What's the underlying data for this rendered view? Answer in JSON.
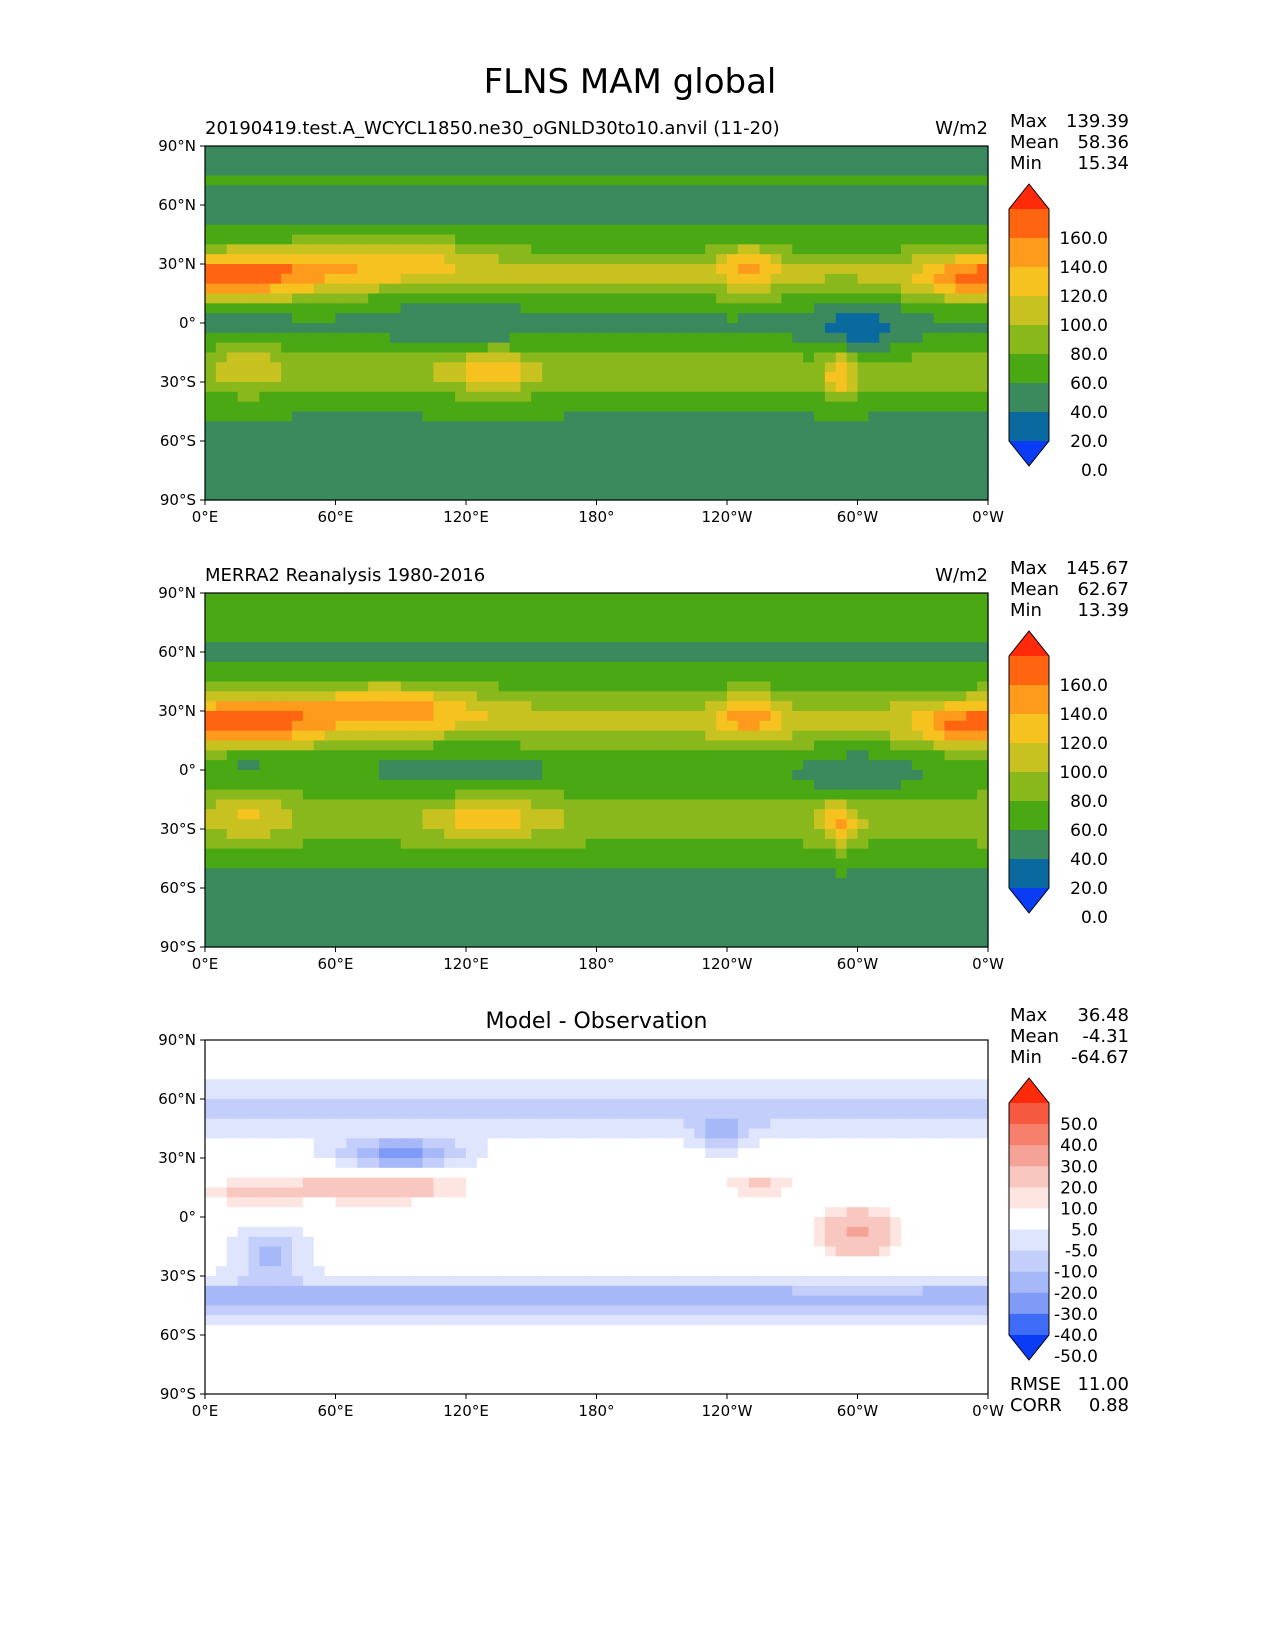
{
  "figure": {
    "title": "FLNS MAM global"
  },
  "chart_data": [
    {
      "type": "heatmap",
      "name": "model",
      "title_left": "20190419.test.A_WCYCL1850.ne30_oGNLD30to10.anvil (11-20)",
      "title_center": "",
      "units": "W/m2",
      "stats": [
        {
          "label": "Max",
          "value": "139.39"
        },
        {
          "label": "Mean",
          "value": "58.36"
        },
        {
          "label": "Min",
          "value": "15.34"
        }
      ],
      "footer_stats": [],
      "x_ticks": [
        "0°E",
        "60°E",
        "120°E",
        "180°",
        "120°W",
        "60°W",
        "0°W"
      ],
      "y_ticks": [
        "90°N",
        "60°N",
        "30°N",
        "0°",
        "30°S",
        "60°S",
        "90°S"
      ],
      "xlim": [
        0,
        360
      ],
      "ylim": [
        -90,
        90
      ],
      "colorbar": {
        "labels": [
          "160.0",
          "140.0",
          "120.0",
          "100.0",
          "80.0",
          "60.0",
          "40.0",
          "20.0",
          "0.0"
        ],
        "colors": [
          "#ff2a0a",
          "#ff6410",
          "#ff9b1c",
          "#f6c220",
          "#c8c220",
          "#89b81d",
          "#4aa814",
          "#3a8a5e",
          "#0a6aa0",
          "#0a3cf5"
        ]
      },
      "field": "model"
    },
    {
      "type": "heatmap",
      "name": "obs",
      "title_left": "MERRA2 Reanalysis 1980-2016",
      "title_center": "",
      "units": "W/m2",
      "stats": [
        {
          "label": "Max",
          "value": "145.67"
        },
        {
          "label": "Mean",
          "value": "62.67"
        },
        {
          "label": "Min",
          "value": "13.39"
        }
      ],
      "footer_stats": [],
      "x_ticks": [
        "0°E",
        "60°E",
        "120°E",
        "180°",
        "120°W",
        "60°W",
        "0°W"
      ],
      "y_ticks": [
        "90°N",
        "60°N",
        "30°N",
        "0°",
        "30°S",
        "60°S",
        "90°S"
      ],
      "xlim": [
        0,
        360
      ],
      "ylim": [
        -90,
        90
      ],
      "colorbar": {
        "labels": [
          "160.0",
          "140.0",
          "120.0",
          "100.0",
          "80.0",
          "60.0",
          "40.0",
          "20.0",
          "0.0"
        ],
        "colors": [
          "#ff2a0a",
          "#ff6410",
          "#ff9b1c",
          "#f6c220",
          "#c8c220",
          "#89b81d",
          "#4aa814",
          "#3a8a5e",
          "#0a6aa0",
          "#0a3cf5"
        ]
      },
      "field": "obs"
    },
    {
      "type": "heatmap",
      "name": "diff",
      "title_left": "",
      "title_center": "Model - Observation",
      "units": "",
      "stats": [
        {
          "label": "Max",
          "value": "36.48"
        },
        {
          "label": "Mean",
          "value": "-4.31"
        },
        {
          "label": "Min",
          "value": "-64.67"
        }
      ],
      "footer_stats": [
        {
          "label": "RMSE",
          "value": "11.00"
        },
        {
          "label": "CORR",
          "value": "0.88"
        }
      ],
      "x_ticks": [
        "0°E",
        "60°E",
        "120°E",
        "180°",
        "120°W",
        "60°W",
        "0°W"
      ],
      "y_ticks": [
        "90°N",
        "60°N",
        "30°N",
        "0°",
        "30°S",
        "60°S",
        "90°S"
      ],
      "xlim": [
        0,
        360
      ],
      "ylim": [
        -90,
        90
      ],
      "colorbar": {
        "labels": [
          "50.0",
          "40.0",
          "30.0",
          "20.0",
          "10.0",
          "5.0",
          "-5.0",
          "-10.0",
          "-20.0",
          "-30.0",
          "-40.0",
          "-50.0"
        ],
        "colors": [
          "#ff2a0a",
          "#f55a40",
          "#f57f6a",
          "#f5a396",
          "#f8c8c0",
          "#fde6e2",
          "#ffffff",
          "#dfe5fd",
          "#c3cffa",
          "#a6b8f7",
          "#7f9bf7",
          "#3f6cf7",
          "#0a3cf5"
        ]
      },
      "field": "diff"
    }
  ]
}
